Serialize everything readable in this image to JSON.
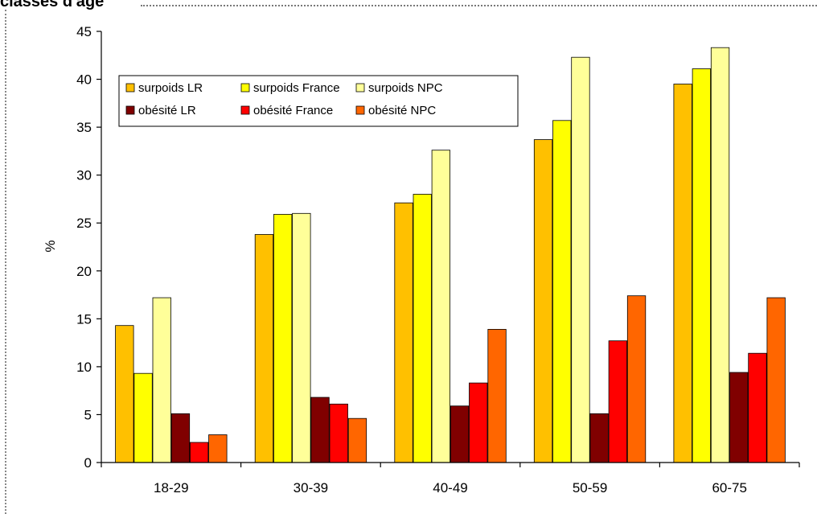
{
  "header": {
    "title_fragment": "classes d'âge"
  },
  "chart_data": {
    "type": "bar",
    "title": "",
    "xlabel": "",
    "ylabel": "%",
    "ylim": [
      0,
      45
    ],
    "yticks": [
      0,
      5,
      10,
      15,
      20,
      25,
      30,
      35,
      40,
      45
    ],
    "categories": [
      "18-29",
      "30-39",
      "40-49",
      "50-59",
      "60-75"
    ],
    "grid": false,
    "legend_position": "top-left",
    "series": [
      {
        "name": "surpoids LR",
        "color": "#FFC000",
        "values": [
          14.3,
          23.8,
          27.1,
          33.7,
          39.5
        ]
      },
      {
        "name": "surpoids France",
        "color": "#FFFF00",
        "values": [
          9.3,
          25.9,
          28.0,
          35.7,
          41.1
        ]
      },
      {
        "name": "surpoids NPC",
        "color": "#FFFF99",
        "values": [
          17.2,
          26.0,
          32.6,
          42.3,
          43.3
        ]
      },
      {
        "name": "obésité LR",
        "color": "#800000",
        "values": [
          5.1,
          6.8,
          5.9,
          5.1,
          9.4
        ]
      },
      {
        "name": "obésité France",
        "color": "#FF0000",
        "values": [
          2.1,
          6.1,
          8.3,
          12.7,
          11.4
        ]
      },
      {
        "name": "obésité NPC",
        "color": "#FF6600",
        "values": [
          2.9,
          4.6,
          13.9,
          17.4,
          17.2
        ]
      }
    ]
  }
}
